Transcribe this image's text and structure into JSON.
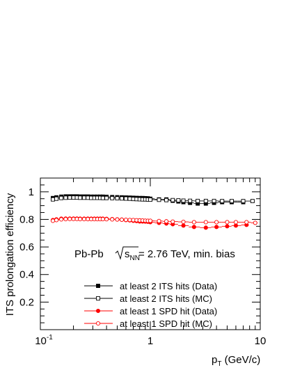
{
  "chart_data": {
    "type": "scatter",
    "xscale": "log",
    "xlim": [
      0.1,
      10
    ],
    "ylim": [
      0.0,
      1.1
    ],
    "xlabel_main": "p",
    "xlabel_sub": "T",
    "xlabel_rest": " (GeV/c)",
    "ylabel": "ITS prolongation efficiency",
    "x_ticklabels": [
      {
        "value": 0.1,
        "base": "10",
        "exp": "-1"
      },
      {
        "value": 1,
        "base": "1",
        "exp": ""
      },
      {
        "value": 10,
        "base": "10",
        "exp": ""
      }
    ],
    "y_ticks": [
      0.2,
      0.4,
      0.6,
      0.8,
      1.0
    ],
    "y_ticklabels": [
      "0.2",
      "0.4",
      "0.6",
      "0.8",
      "1"
    ],
    "annotation": {
      "prefix": "Pb-Pb ",
      "sqrt_s": "s",
      "sqrt_sub": "NN",
      "suffix": " = 2.76 TeV, min. bias"
    },
    "legend_position": "lower-center",
    "series": [
      {
        "name": "at least 2 ITS hits (Data)",
        "color": "#000000",
        "marker": "square-filled",
        "x": [
          0.13,
          0.14,
          0.155,
          0.17,
          0.185,
          0.2,
          0.215,
          0.23,
          0.25,
          0.27,
          0.29,
          0.31,
          0.33,
          0.35,
          0.37,
          0.4,
          0.45,
          0.5,
          0.55,
          0.6,
          0.65,
          0.7,
          0.75,
          0.8,
          0.85,
          0.9,
          0.95,
          1.0,
          1.2,
          1.4,
          1.6,
          1.8,
          2.0,
          2.3,
          2.7,
          3.2,
          3.8,
          4.5,
          5.5,
          7.0
        ],
        "y": [
          0.955,
          0.96,
          0.965,
          0.967,
          0.967,
          0.967,
          0.967,
          0.966,
          0.966,
          0.966,
          0.965,
          0.965,
          0.965,
          0.965,
          0.965,
          0.964,
          0.962,
          0.961,
          0.96,
          0.959,
          0.958,
          0.957,
          0.956,
          0.955,
          0.955,
          0.954,
          0.953,
          0.95,
          0.945,
          0.945,
          0.935,
          0.93,
          0.925,
          0.92,
          0.915,
          0.915,
          0.92,
          0.925,
          0.925,
          0.925
        ]
      },
      {
        "name": "at least 2 ITS hits (MC)",
        "color": "#000000",
        "marker": "square-open",
        "x": [
          0.13,
          0.14,
          0.155,
          0.17,
          0.185,
          0.2,
          0.215,
          0.23,
          0.25,
          0.27,
          0.29,
          0.31,
          0.33,
          0.35,
          0.37,
          0.4,
          0.45,
          0.5,
          0.55,
          0.6,
          0.65,
          0.7,
          0.75,
          0.8,
          0.85,
          0.9,
          0.95,
          1.0,
          1.2,
          1.4,
          1.6,
          1.8,
          2.0,
          2.3,
          2.7,
          3.2,
          3.8,
          4.5,
          5.5,
          7.0,
          8.5
        ],
        "y": [
          0.945,
          0.95,
          0.955,
          0.957,
          0.958,
          0.958,
          0.958,
          0.957,
          0.957,
          0.957,
          0.956,
          0.956,
          0.956,
          0.956,
          0.955,
          0.955,
          0.954,
          0.953,
          0.952,
          0.951,
          0.95,
          0.948,
          0.947,
          0.946,
          0.945,
          0.945,
          0.944,
          0.943,
          0.942,
          0.94,
          0.94,
          0.938,
          0.936,
          0.935,
          0.934,
          0.934,
          0.934,
          0.933,
          0.933,
          0.933,
          0.933
        ]
      },
      {
        "name": "at least 1 SPD hit (Data)",
        "color": "#ff0000",
        "marker": "circle-filled",
        "x": [
          0.13,
          0.14,
          0.155,
          0.17,
          0.185,
          0.2,
          0.215,
          0.23,
          0.25,
          0.27,
          0.29,
          0.31,
          0.33,
          0.35,
          0.37,
          0.4,
          0.45,
          0.5,
          0.55,
          0.6,
          0.65,
          0.7,
          0.75,
          0.8,
          0.85,
          0.9,
          0.95,
          1.0,
          1.2,
          1.4,
          1.6,
          2.0,
          2.5,
          3.2,
          4.0,
          5.0,
          6.0,
          7.5
        ],
        "y": [
          0.795,
          0.8,
          0.805,
          0.806,
          0.806,
          0.806,
          0.806,
          0.805,
          0.805,
          0.805,
          0.805,
          0.805,
          0.805,
          0.805,
          0.805,
          0.804,
          0.802,
          0.8,
          0.798,
          0.795,
          0.793,
          0.79,
          0.788,
          0.785,
          0.785,
          0.784,
          0.783,
          0.78,
          0.775,
          0.77,
          0.765,
          0.755,
          0.745,
          0.74,
          0.745,
          0.75,
          0.755,
          0.76
        ]
      },
      {
        "name": "at least 1 SPD hit (MC)",
        "color": "#ff0000",
        "marker": "circle-open",
        "x": [
          0.13,
          0.14,
          0.155,
          0.17,
          0.185,
          0.2,
          0.215,
          0.23,
          0.25,
          0.27,
          0.29,
          0.31,
          0.33,
          0.35,
          0.37,
          0.4,
          0.45,
          0.5,
          0.55,
          0.6,
          0.65,
          0.7,
          0.75,
          0.8,
          0.85,
          0.9,
          0.95,
          1.0,
          1.2,
          1.4,
          1.6,
          2.0,
          2.5,
          3.2,
          4.0,
          5.0,
          6.0,
          7.5,
          9.0
        ],
        "y": [
          0.79,
          0.795,
          0.8,
          0.802,
          0.803,
          0.803,
          0.803,
          0.802,
          0.802,
          0.802,
          0.802,
          0.802,
          0.802,
          0.802,
          0.802,
          0.801,
          0.8,
          0.799,
          0.798,
          0.797,
          0.796,
          0.795,
          0.794,
          0.793,
          0.792,
          0.791,
          0.79,
          0.79,
          0.788,
          0.786,
          0.784,
          0.782,
          0.78,
          0.78,
          0.78,
          0.78,
          0.78,
          0.78,
          0.775
        ]
      }
    ]
  }
}
